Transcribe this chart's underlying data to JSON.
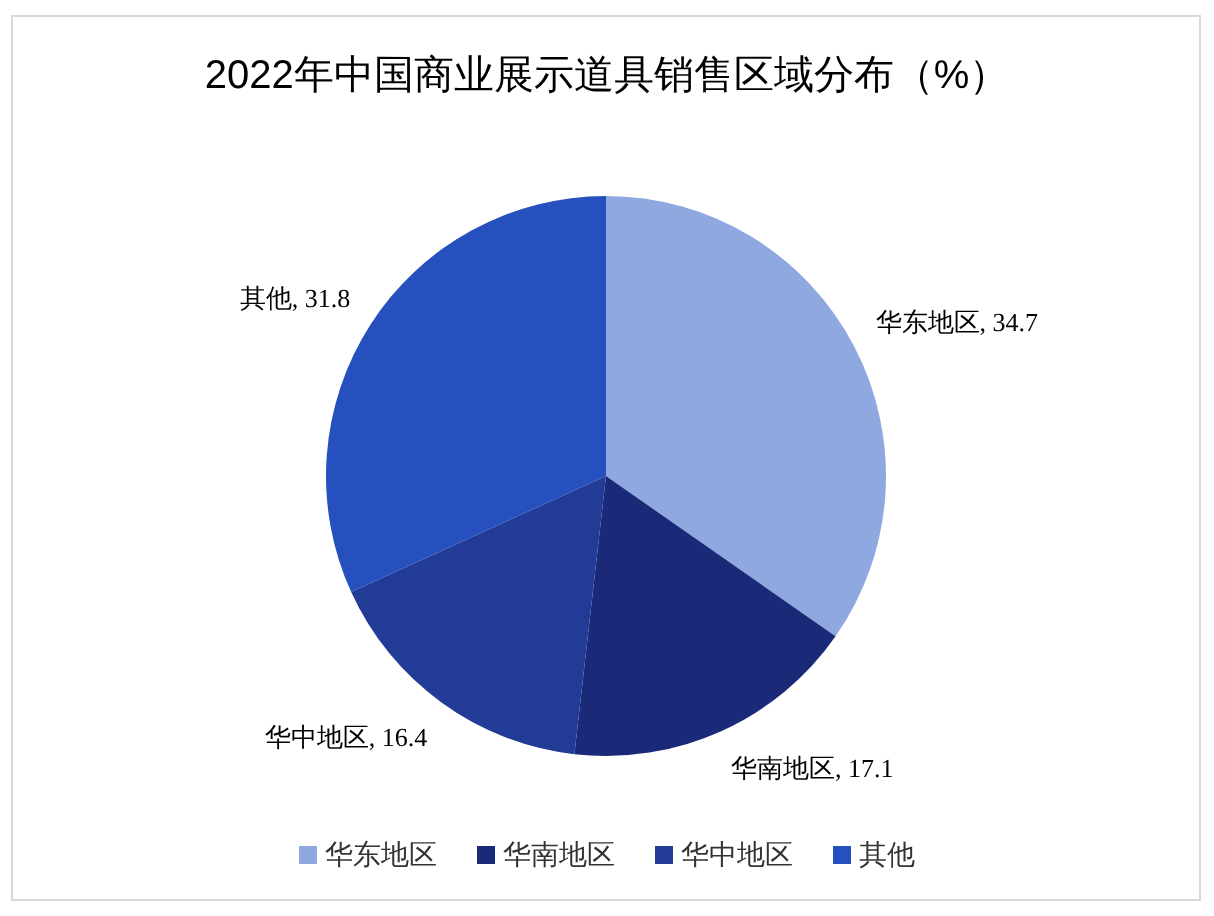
{
  "chart_data": {
    "type": "pie",
    "title": "2022年中国商业展示道具销售区域分布（%）",
    "categories": [
      "华东地区",
      "华南地区",
      "华中地区",
      "其他"
    ],
    "values": [
      34.7,
      17.1,
      16.4,
      31.8
    ],
    "colors": [
      "#8fa9e0",
      "#1a2a78",
      "#223b96",
      "#2550bd"
    ],
    "value_labels": [
      "华东地区, 34.7",
      "华南地区, 17.1",
      "华中地区, 16.4",
      "其他, 31.8"
    ],
    "legend": "bottom"
  }
}
